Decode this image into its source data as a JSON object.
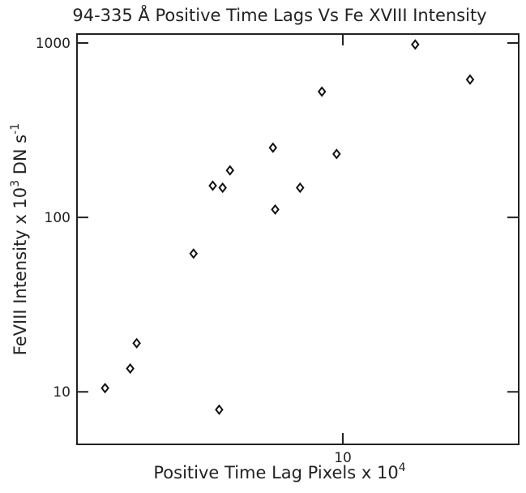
{
  "chart_data": {
    "type": "scatter",
    "title": "94-335 Å Positive Time Lags Vs Fe XVIII Intensity",
    "xlabel": [
      "Positive Time Lag Pixels x 10",
      "4"
    ],
    "ylabel": [
      "FeVIII Intensity  x 10",
      "3",
      " DN s",
      "-1"
    ],
    "x": [
      2.37,
      2.76,
      2.87,
      4.05,
      4.55,
      4.83,
      5.05,
      4.73,
      6.55,
      6.64,
      7.72,
      8.81,
      9.63,
      15.5,
      21.6
    ],
    "values": [
      10.5,
      13.6,
      19,
      62,
      152,
      148,
      186,
      7.9,
      251,
      111,
      148,
      526,
      231,
      980,
      617
    ],
    "color": "#111111",
    "marker": "diamond",
    "xlog": true,
    "ylog": true,
    "xlim": [
      2,
      29
    ],
    "ylim": [
      5,
      1125
    ],
    "xticks": [
      10
    ],
    "yticks": [
      10,
      100,
      1000
    ]
  }
}
